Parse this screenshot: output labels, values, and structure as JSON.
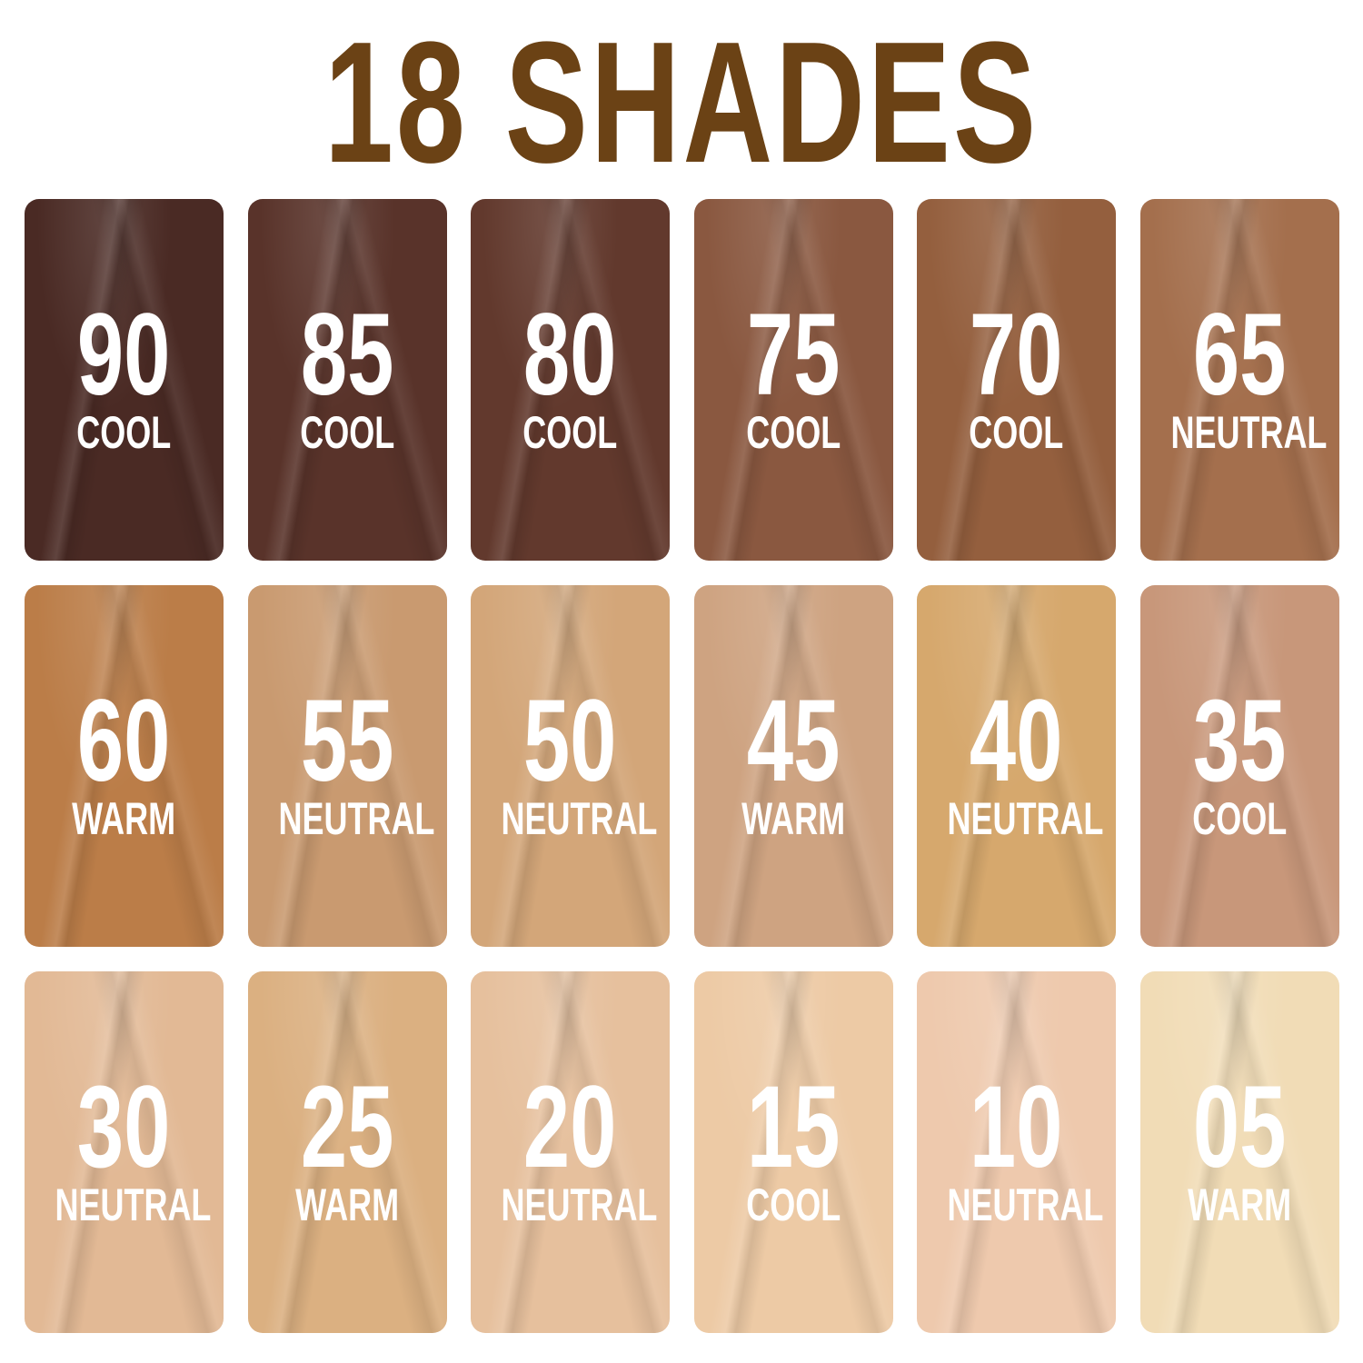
{
  "title": "18 SHADES",
  "title_color": "#6b4215",
  "shades": [
    {
      "number": "90",
      "tone": "COOL",
      "color": "#4a2a24"
    },
    {
      "number": "85",
      "tone": "COOL",
      "color": "#59332a"
    },
    {
      "number": "80",
      "tone": "COOL",
      "color": "#62392d"
    },
    {
      "number": "75",
      "tone": "COOL",
      "color": "#8a5840"
    },
    {
      "number": "70",
      "tone": "COOL",
      "color": "#945f3e"
    },
    {
      "number": "65",
      "tone": "NEUTRAL",
      "color": "#a46f4d"
    },
    {
      "number": "60",
      "tone": "WARM",
      "color": "#bb7d48"
    },
    {
      "number": "55",
      "tone": "NEUTRAL",
      "color": "#c99a70"
    },
    {
      "number": "50",
      "tone": "NEUTRAL",
      "color": "#d3a679"
    },
    {
      "number": "45",
      "tone": "WARM",
      "color": "#cea381"
    },
    {
      "number": "40",
      "tone": "NEUTRAL",
      "color": "#d6a86d"
    },
    {
      "number": "35",
      "tone": "COOL",
      "color": "#c8977a"
    },
    {
      "number": "30",
      "tone": "NEUTRAL",
      "color": "#e2b995"
    },
    {
      "number": "25",
      "tone": "WARM",
      "color": "#dbb081"
    },
    {
      "number": "20",
      "tone": "NEUTRAL",
      "color": "#e6c09d"
    },
    {
      "number": "15",
      "tone": "COOL",
      "color": "#edcaa5"
    },
    {
      "number": "10",
      "tone": "NEUTRAL",
      "color": "#eec9ad"
    },
    {
      "number": "05",
      "tone": "WARM",
      "color": "#f1dcb6"
    }
  ]
}
